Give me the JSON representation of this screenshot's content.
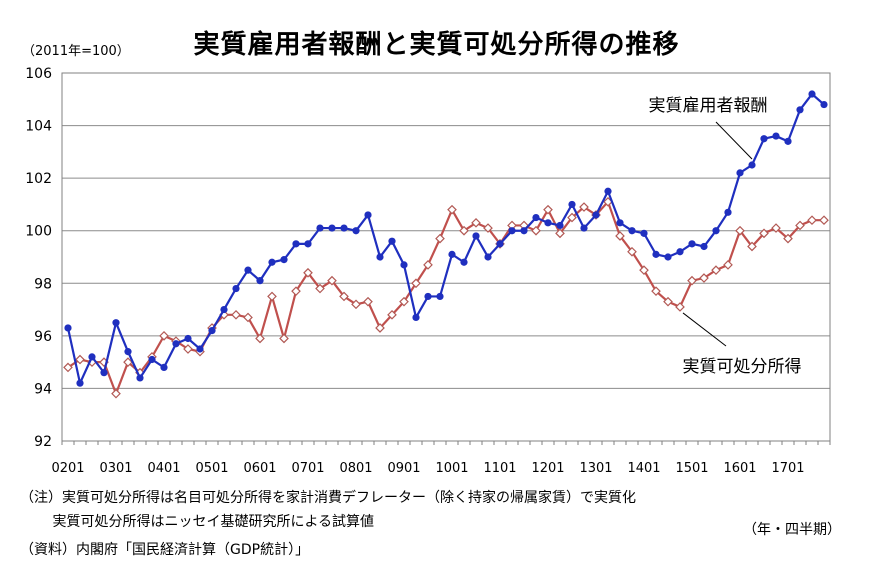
{
  "title": "実質雇用者報酬と実質可処分所得の推移",
  "unit_label": "（2011年=100）",
  "period_label": "（年・四半期）",
  "notes": [
    "（注）実質可処分所得は名目可処分所得を家計消費デフレーター（除く持家の帰属家賃）で実質化",
    "　　 実質可処分所得はニッセイ基礎研究所による試算値",
    "（資料）内閣府「国民経済計算（GDP統計）」"
  ],
  "colors": {
    "compensation": "#1f2fbf",
    "income_line": "#c0504d",
    "income_marker": "#b25a55",
    "grid": "#8c8c8c"
  },
  "chart_data": {
    "type": "line",
    "ylim": [
      92,
      106
    ],
    "yticks": [
      92,
      94,
      96,
      98,
      100,
      102,
      104,
      106
    ],
    "x_tick_labels": [
      "0201",
      "0301",
      "0401",
      "0501",
      "0601",
      "0701",
      "0801",
      "0901",
      "1001",
      "1101",
      "1201",
      "1301",
      "1401",
      "1501",
      "1601",
      "1701"
    ],
    "grid": "horizontal",
    "series": [
      {
        "name": "実質雇用者報酬",
        "marker": "filled-circle",
        "values": [
          96.3,
          94.2,
          95.2,
          94.6,
          96.5,
          95.4,
          94.4,
          95.1,
          94.8,
          95.7,
          95.9,
          95.5,
          96.2,
          97.0,
          97.8,
          98.5,
          98.1,
          98.8,
          98.9,
          99.5,
          99.5,
          100.1,
          100.1,
          100.1,
          100.0,
          100.6,
          99.0,
          99.6,
          98.7,
          96.7,
          97.5,
          97.5,
          99.1,
          98.8,
          99.8,
          99.0,
          99.5,
          100.0,
          100.0,
          100.5,
          100.3,
          100.2,
          101.0,
          100.1,
          100.6,
          101.5,
          100.3,
          100.0,
          99.9,
          99.1,
          99.0,
          99.2,
          99.5,
          99.4,
          100.0,
          100.7,
          102.2,
          102.5,
          103.5,
          103.6,
          103.4,
          104.6,
          105.2,
          104.8
        ]
      },
      {
        "name": "実質可処分所得",
        "marker": "hollow-diamond",
        "values": [
          94.8,
          95.1,
          95.0,
          95.0,
          93.8,
          95.0,
          94.6,
          95.2,
          96.0,
          95.8,
          95.5,
          95.4,
          96.3,
          96.8,
          96.8,
          96.7,
          95.9,
          97.5,
          95.9,
          97.7,
          98.4,
          97.8,
          98.1,
          97.5,
          97.2,
          97.3,
          96.3,
          96.8,
          97.3,
          98.0,
          98.7,
          99.7,
          100.8,
          100.0,
          100.3,
          100.1,
          99.5,
          100.2,
          100.2,
          100.0,
          100.8,
          99.9,
          100.5,
          100.9,
          100.6,
          101.1,
          99.8,
          99.2,
          98.5,
          97.7,
          97.3,
          97.1,
          98.1,
          98.2,
          98.5,
          98.7,
          100.0,
          99.4,
          99.9,
          100.1,
          99.7,
          100.2,
          100.4,
          100.4
        ]
      }
    ],
    "annotations": [
      {
        "text": "実質雇用者報酬",
        "series": 0
      },
      {
        "text": "実質可処分所得",
        "series": 1
      }
    ]
  }
}
